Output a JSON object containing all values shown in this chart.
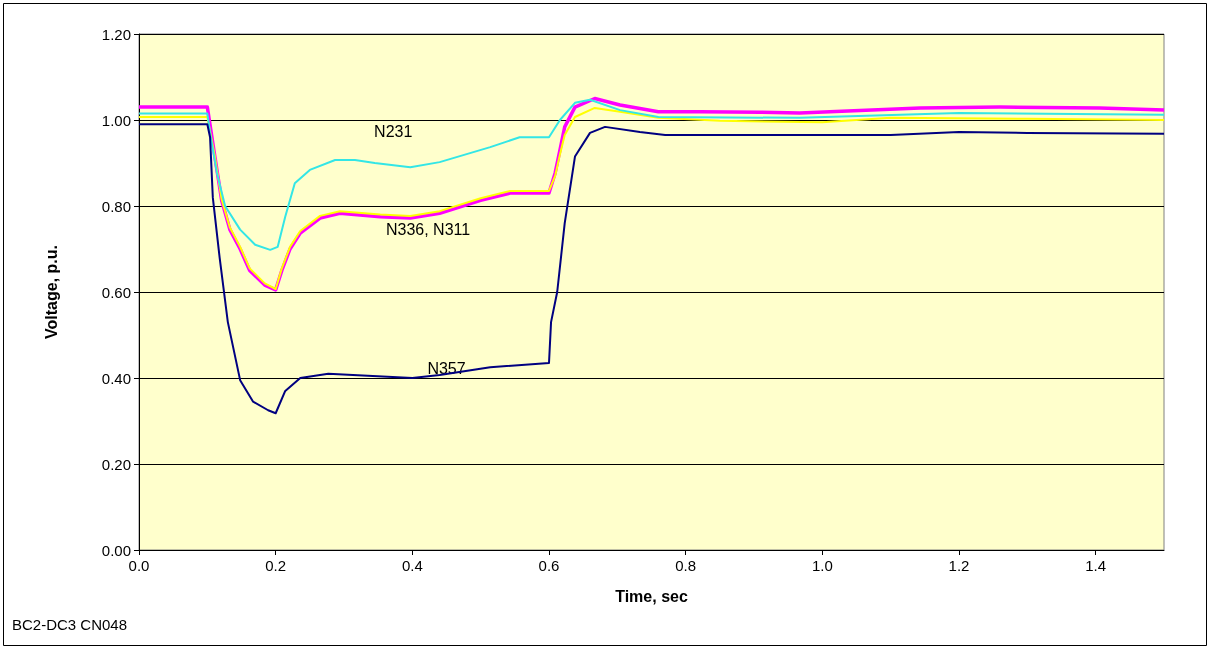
{
  "chart_data": {
    "type": "line",
    "xlabel": "Time, sec",
    "ylabel": "Voltage, p.u.",
    "xlim": [
      0,
      1.5
    ],
    "xticks": [
      {
        "value": 0,
        "label": "0.0"
      },
      {
        "value": 0.2,
        "label": "0.2"
      },
      {
        "value": 0.4,
        "label": "0.4"
      },
      {
        "value": 0.6,
        "label": "0.6"
      },
      {
        "value": 0.8,
        "label": "0.8"
      },
      {
        "value": 1,
        "label": "1.0"
      },
      {
        "value": 1.2,
        "label": "1.2"
      },
      {
        "value": 1.4,
        "label": "1.4"
      }
    ],
    "ylim": [
      0,
      1.2
    ],
    "yticks": [
      {
        "value": 0,
        "label": "0.00"
      },
      {
        "value": 0.2,
        "label": "0.20"
      },
      {
        "value": 0.4,
        "label": "0.40"
      },
      {
        "value": 0.6,
        "label": "0.60"
      },
      {
        "value": 0.8,
        "label": "0.80"
      },
      {
        "value": 1,
        "label": "1.00"
      },
      {
        "value": 1.2,
        "label": "1.20"
      }
    ],
    "grid": "y",
    "marker": "none",
    "line_style": "solid",
    "series": [
      {
        "color": "#ff00ff",
        "x": [
          0,
          0.1,
          0.111,
          0.121,
          0.133,
          0.148,
          0.162,
          0.184,
          0.2,
          0.209,
          0.221,
          0.236,
          0.265,
          0.294,
          0.353,
          0.397,
          0.44,
          0.5,
          0.543,
          0.6,
          0.609,
          0.616,
          0.623,
          0.638,
          0.667,
          0.704,
          0.76,
          0.82,
          0.91,
          0.967,
          1.143,
          1.26,
          1.406,
          1.5
        ],
        "values": [
          1.03,
          1.03,
          0.915,
          0.813,
          0.745,
          0.7,
          0.65,
          0.616,
          0.605,
          0.65,
          0.7,
          0.737,
          0.772,
          0.783,
          0.775,
          0.772,
          0.783,
          0.813,
          0.83,
          0.83,
          0.877,
          0.93,
          0.984,
          1.03,
          1.05,
          1.035,
          1.019,
          1.019,
          1.018,
          1.016,
          1.028,
          1.03,
          1.028,
          1.023
        ]
      },
      {
        "color": "#ffff00",
        "x": [
          0,
          0.1,
          0.111,
          0.121,
          0.133,
          0.148,
          0.162,
          0.184,
          0.2,
          0.209,
          0.221,
          0.236,
          0.265,
          0.294,
          0.353,
          0.397,
          0.44,
          0.5,
          0.543,
          0.6,
          0.609,
          0.616,
          0.623,
          0.638,
          0.667,
          0.704,
          0.76,
          0.85,
          1,
          1.1,
          1.3,
          1.5
        ],
        "values": [
          1.007,
          1.007,
          0.915,
          0.815,
          0.75,
          0.705,
          0.655,
          0.62,
          0.607,
          0.655,
          0.705,
          0.742,
          0.777,
          0.788,
          0.78,
          0.777,
          0.788,
          0.818,
          0.835,
          0.835,
          0.87,
          0.92,
          0.965,
          1.007,
          1.028,
          1.019,
          1.005,
          0.998,
          0.995,
          1.005,
          1.003,
          1.0
        ]
      },
      {
        "color": "#33e6e6",
        "x": [
          0,
          0.1,
          0.104,
          0.114,
          0.126,
          0.148,
          0.17,
          0.192,
          0.203,
          0.214,
          0.228,
          0.25,
          0.287,
          0.316,
          0.345,
          0.397,
          0.44,
          0.514,
          0.557,
          0.6,
          0.616,
          0.638,
          0.66,
          0.704,
          0.76,
          0.967,
          1.2,
          1.5
        ],
        "values": [
          1.015,
          1.015,
          0.97,
          0.877,
          0.8,
          0.745,
          0.71,
          0.698,
          0.705,
          0.775,
          0.853,
          0.884,
          0.907,
          0.907,
          0.9,
          0.89,
          0.902,
          0.937,
          0.96,
          0.96,
          1.0,
          1.04,
          1.047,
          1.023,
          1.007,
          1.005,
          1.016,
          1.012
        ]
      },
      {
        "color": "#000080",
        "x": [
          0,
          0.1,
          0.104,
          0.108,
          0.118,
          0.13,
          0.148,
          0.167,
          0.189,
          0.2,
          0.214,
          0.236,
          0.277,
          0.4,
          0.44,
          0.514,
          0.6,
          0.603,
          0.612,
          0.623,
          0.638,
          0.66,
          0.682,
          0.733,
          0.77,
          1.0,
          1.1,
          1.2,
          1.3,
          1.5
        ],
        "values": [
          0.99,
          0.99,
          0.96,
          0.82,
          0.68,
          0.53,
          0.395,
          0.345,
          0.325,
          0.318,
          0.37,
          0.4,
          0.41,
          0.4,
          0.407,
          0.425,
          0.435,
          0.53,
          0.6,
          0.76,
          0.915,
          0.97,
          0.984,
          0.972,
          0.965,
          0.965,
          0.965,
          0.972,
          0.97,
          0.968
        ]
      }
    ],
    "annotations": [
      "N231",
      "N336, N311",
      {
        "text": "N357",
        "x": 0.45,
        "y": 0.423
      },
      "BC2-DC3 CN048"
    ]
  }
}
